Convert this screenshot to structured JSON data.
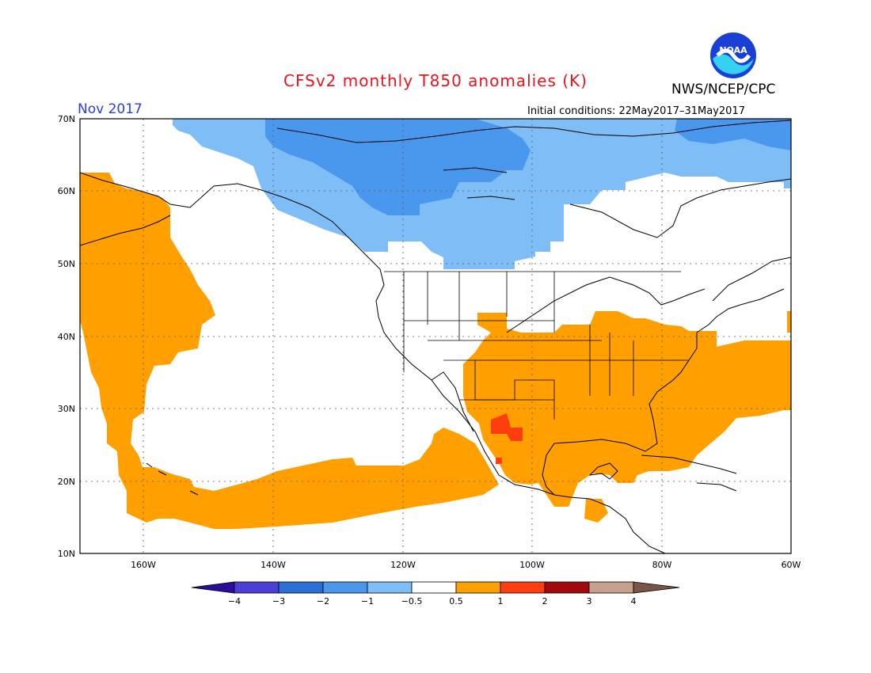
{
  "header": {
    "title": "CFSv2 monthly T850 anomalies (K)",
    "agency": "NWS/NCEP/CPC",
    "logo_text": "NOAA",
    "period": "Nov 2017",
    "initial_conditions": "Initial conditions: 22May2017–31May2017"
  },
  "map": {
    "lon_range": [
      -172,
      -60
    ],
    "lat_range": [
      10,
      70
    ],
    "lat_labels": [
      "10N",
      "20N",
      "30N",
      "40N",
      "50N",
      "60N",
      "70N"
    ],
    "lon_labels": [
      "160W",
      "140W",
      "120W",
      "100W",
      "80W",
      "60W"
    ]
  },
  "colorbar": {
    "labels": [
      "−4",
      "−3",
      "−2",
      "−1",
      "−0.5",
      "0.5",
      "1",
      "2",
      "3",
      "4"
    ],
    "colors": [
      "#2b0d9c",
      "#4a3fd6",
      "#2b6fd8",
      "#4a97ee",
      "#7fbdf6",
      "#ffffff",
      "#ff9f00",
      "#ff3d0f",
      "#a3080d",
      "#c7a08e",
      "#7a5446"
    ]
  },
  "legend_colors": {
    "warm": "#ff9f00",
    "hot": "#ff3d0f",
    "cool": "#7fbdf6",
    "cooler": "#4a97ee"
  }
}
